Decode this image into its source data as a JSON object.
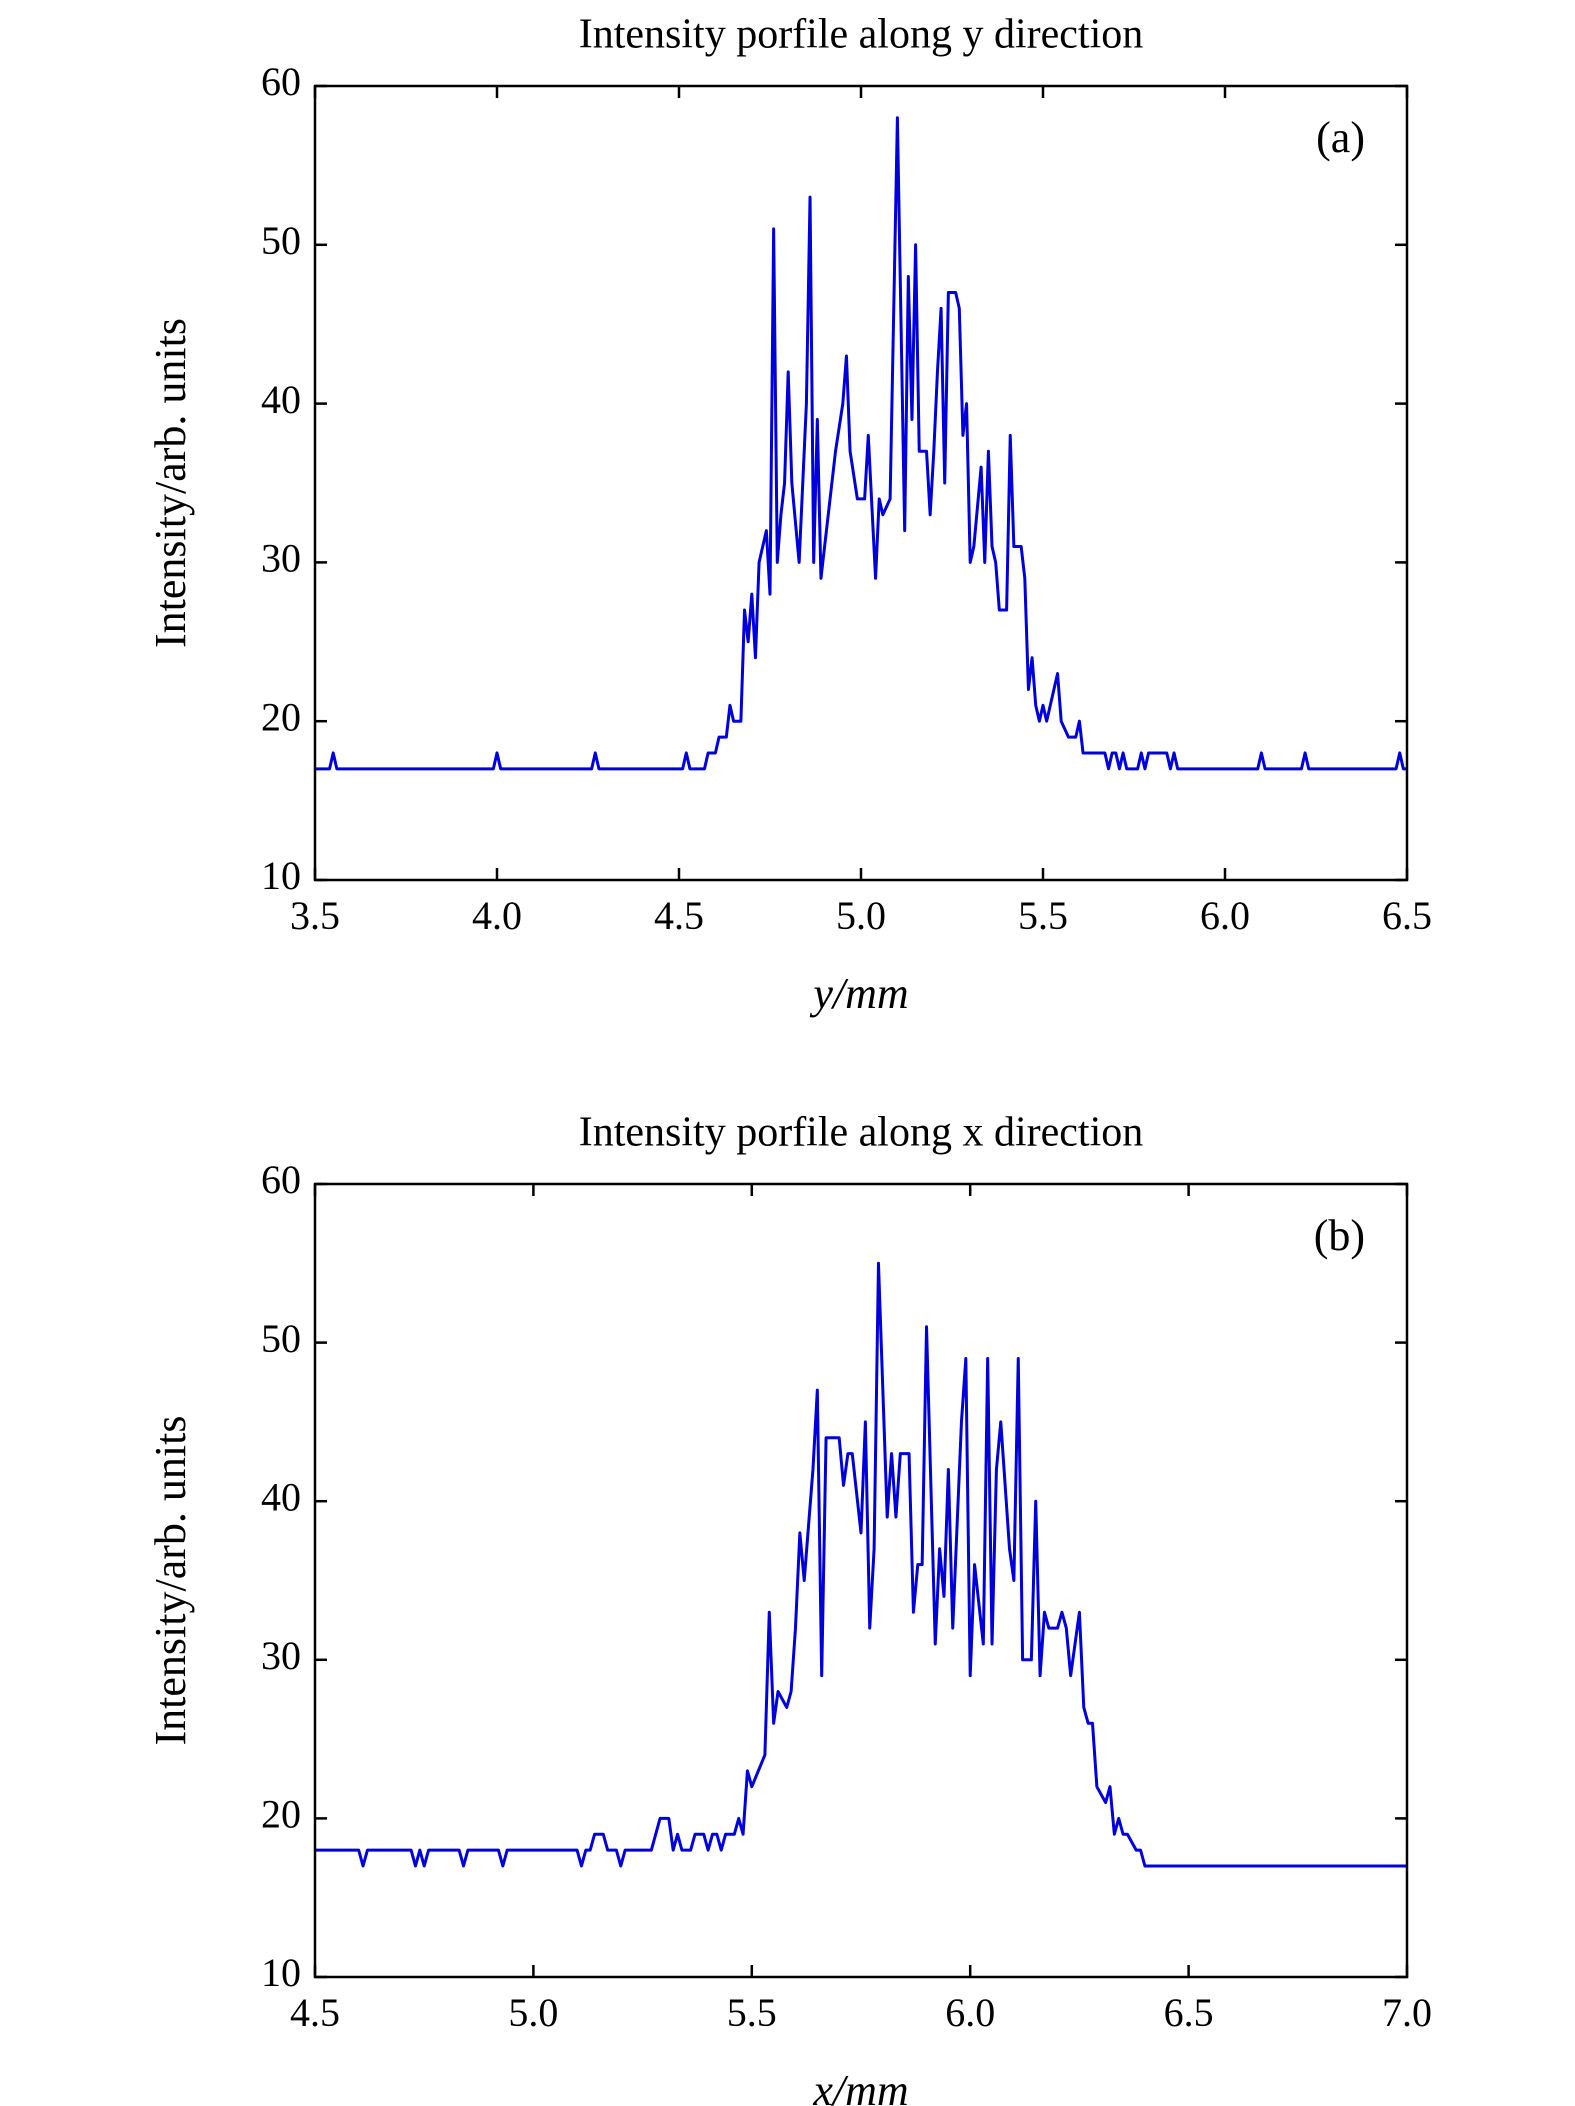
{
  "chart_data": [
    {
      "type": "line",
      "title": "Intensity porfile along y direction",
      "xlabel": "y/mm",
      "ylabel": "Intensity/arb. units",
      "panel_label": "(a)",
      "color": "#0000dd",
      "xlim": [
        3.5,
        6.5
      ],
      "xticks": [
        3.5,
        {
          "value": 4,
          "label": "4.0"
        },
        4.5,
        {
          "value": 5,
          "label": "5.0"
        },
        5.5,
        {
          "value": 6,
          "label": "6.0"
        },
        6.5
      ],
      "ylim": [
        10,
        60
      ],
      "yticks": [
        10,
        20,
        30,
        40,
        50,
        60
      ],
      "x": [
        3.5,
        3.54,
        3.55,
        3.56,
        3.99,
        4.0,
        4.01,
        4.26,
        4.27,
        4.28,
        4.51,
        4.52,
        4.53,
        4.57,
        4.58,
        4.6,
        4.61,
        4.63,
        4.64,
        4.65,
        4.67,
        4.68,
        4.69,
        4.7,
        4.71,
        4.72,
        4.73,
        4.74,
        4.75,
        4.76,
        4.77,
        4.78,
        4.79,
        4.8,
        4.81,
        4.83,
        4.85,
        4.86,
        4.87,
        4.88,
        4.89,
        4.91,
        4.93,
        4.95,
        4.96,
        4.97,
        4.99,
        5.01,
        5.02,
        5.04,
        5.05,
        5.06,
        5.08,
        5.1,
        5.12,
        5.13,
        5.14,
        5.15,
        5.16,
        5.18,
        5.19,
        5.2,
        5.21,
        5.22,
        5.23,
        5.24,
        5.26,
        5.27,
        5.28,
        5.29,
        5.3,
        5.31,
        5.33,
        5.34,
        5.35,
        5.36,
        5.37,
        5.38,
        5.4,
        5.41,
        5.42,
        5.44,
        5.45,
        5.46,
        5.47,
        5.48,
        5.49,
        5.5,
        5.51,
        5.52,
        5.54,
        5.55,
        5.57,
        5.59,
        5.6,
        5.61,
        5.67,
        5.68,
        5.69,
        5.7,
        5.71,
        5.72,
        5.73,
        5.76,
        5.77,
        5.78,
        5.79,
        5.84,
        5.85,
        5.86,
        5.87,
        6.09,
        6.1,
        6.11,
        6.21,
        6.22,
        6.23,
        6.47,
        6.48,
        6.49,
        6.5
      ],
      "values": [
        17,
        17,
        18,
        17,
        17,
        18,
        17,
        17,
        18,
        17,
        17,
        18,
        17,
        17,
        18,
        18,
        19,
        19,
        21,
        20,
        20,
        27,
        25,
        28,
        24,
        30,
        31,
        32,
        28,
        51,
        30,
        33,
        35,
        42,
        35,
        30,
        40,
        53,
        30,
        39,
        29,
        33,
        37,
        40,
        43,
        37,
        34,
        34,
        38,
        29,
        34,
        33,
        34,
        58,
        32,
        48,
        39,
        50,
        37,
        37,
        33,
        37,
        42,
        46,
        35,
        47,
        47,
        46,
        38,
        40,
        30,
        31,
        36,
        30,
        37,
        31,
        30,
        27,
        27,
        38,
        31,
        31,
        29,
        22,
        24,
        21,
        20,
        21,
        20,
        21,
        23,
        20,
        19,
        19,
        20,
        18,
        18,
        17,
        18,
        18,
        17,
        18,
        17,
        17,
        18,
        17,
        18,
        18,
        17,
        18,
        17,
        17,
        18,
        17,
        17,
        18,
        17,
        17,
        18,
        17,
        17
      ]
    },
    {
      "type": "line",
      "title": "Intensity porfile along x direction",
      "xlabel": "x/mm",
      "ylabel": "Intensity/arb. units",
      "panel_label": "(b)",
      "color": "#0000dd",
      "xlim": [
        4.5,
        7
      ],
      "xticks": [
        4.5,
        {
          "value": 5,
          "label": "5.0"
        },
        5.5,
        {
          "value": 6,
          "label": "6.0"
        },
        6.5,
        {
          "value": 7,
          "label": "7.0"
        }
      ],
      "ylim": [
        10,
        60
      ],
      "yticks": [
        10,
        20,
        30,
        40,
        50,
        60
      ],
      "x": [
        4.5,
        4.6,
        4.61,
        4.62,
        4.72,
        4.73,
        4.74,
        4.75,
        4.76,
        4.83,
        4.84,
        4.85,
        4.92,
        4.93,
        4.94,
        5.1,
        5.11,
        5.12,
        5.13,
        5.14,
        5.16,
        5.17,
        5.19,
        5.2,
        5.21,
        5.27,
        5.29,
        5.31,
        5.32,
        5.33,
        5.34,
        5.36,
        5.37,
        5.39,
        5.4,
        5.41,
        5.42,
        5.43,
        5.44,
        5.46,
        5.47,
        5.48,
        5.49,
        5.5,
        5.53,
        5.54,
        5.55,
        5.56,
        5.58,
        5.59,
        5.6,
        5.61,
        5.62,
        5.64,
        5.65,
        5.66,
        5.67,
        5.7,
        5.71,
        5.72,
        5.73,
        5.75,
        5.76,
        5.77,
        5.78,
        5.79,
        5.81,
        5.82,
        5.83,
        5.84,
        5.86,
        5.87,
        5.88,
        5.89,
        5.9,
        5.92,
        5.93,
        5.94,
        5.95,
        5.96,
        5.98,
        5.99,
        6.0,
        6.01,
        6.03,
        6.04,
        6.05,
        6.06,
        6.07,
        6.09,
        6.1,
        6.11,
        6.12,
        6.14,
        6.15,
        6.16,
        6.17,
        6.18,
        6.2,
        6.21,
        6.22,
        6.23,
        6.25,
        6.26,
        6.27,
        6.28,
        6.29,
        6.31,
        6.32,
        6.33,
        6.34,
        6.35,
        6.36,
        6.38,
        6.39,
        6.4,
        7.0
      ],
      "values": [
        18,
        18,
        17,
        18,
        18,
        17,
        18,
        17,
        18,
        18,
        17,
        18,
        18,
        17,
        18,
        18,
        17,
        18,
        18,
        19,
        19,
        18,
        18,
        17,
        18,
        18,
        20,
        20,
        18,
        19,
        18,
        18,
        19,
        19,
        18,
        19,
        19,
        18,
        19,
        19,
        20,
        19,
        23,
        22,
        24,
        33,
        26,
        28,
        27,
        28,
        32,
        38,
        35,
        42,
        47,
        29,
        44,
        44,
        41,
        43,
        43,
        38,
        45,
        32,
        37,
        55,
        39,
        43,
        39,
        43,
        43,
        33,
        36,
        36,
        51,
        31,
        37,
        34,
        42,
        32,
        45,
        49,
        29,
        36,
        31,
        49,
        31,
        42,
        45,
        37,
        35,
        49,
        30,
        30,
        40,
        29,
        33,
        32,
        32,
        33,
        32,
        29,
        33,
        27,
        26,
        26,
        22,
        21,
        22,
        19,
        20,
        19,
        19,
        18,
        18,
        17,
        17
      ]
    }
  ]
}
